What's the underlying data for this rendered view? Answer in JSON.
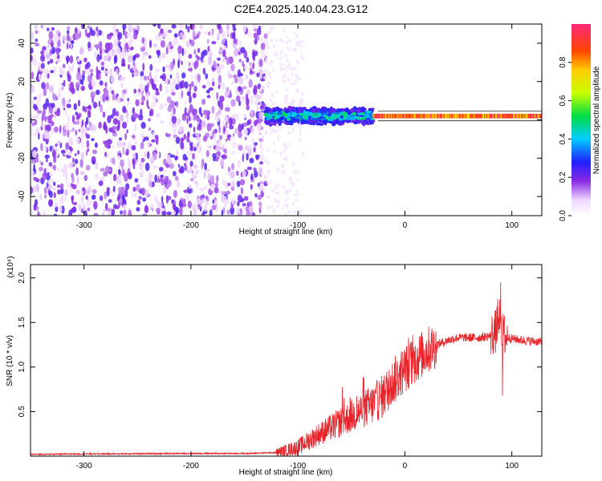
{
  "title": "C2E4.2025.140.04.23.G12",
  "chart_data": [
    {
      "type": "heatmap",
      "xlabel": "Height of straight line (km)",
      "ylabel": "Frequency (Hz)",
      "xlim": [
        -350,
        128
      ],
      "ylim": [
        -50,
        50
      ],
      "x_ticks": [
        -300,
        -200,
        -100,
        0,
        100
      ],
      "y_ticks": [
        40,
        20,
        0,
        -20,
        -40
      ],
      "colorbar": {
        "label": "Normalized spectral amplitude",
        "range": [
          0.0,
          1.0
        ],
        "ticks": [
          "0.0",
          "0.2",
          "0.4",
          "0.6",
          "0.8"
        ]
      },
      "features": [
        {
          "region": "noise",
          "x_range": [
            -350,
            -130
          ],
          "freq_range": [
            -50,
            50
          ],
          "amplitude": "low (0.05-0.2)"
        },
        {
          "region": "band",
          "x_range": [
            -130,
            -30
          ],
          "freq_center": 2,
          "freq_halfwidth": 4,
          "amplitude": "0.2-0.5"
        },
        {
          "region": "line",
          "x_range": [
            -30,
            128
          ],
          "freq_center": 2,
          "amplitude": "0.7-1.0"
        }
      ]
    },
    {
      "type": "line",
      "xlabel": "Height of straight line (km)",
      "ylabel": "SNR (10 * v/v)",
      "multiplier": "(x10⁴)",
      "xlim": [
        -350,
        128
      ],
      "ylim": [
        0,
        2.15
      ],
      "x_ticks": [
        -300,
        -200,
        -100,
        0,
        100
      ],
      "y_ticks": [
        "0.5",
        "1.0",
        "1.5",
        "2.0"
      ],
      "series": [
        {
          "color": "#e8232a",
          "x": [
            -350,
            -300,
            -200,
            -150,
            -120,
            -100,
            -80,
            -60,
            -40,
            -30,
            -20,
            -10,
            0,
            10,
            20,
            30,
            40,
            50,
            60,
            70,
            80,
            85,
            88,
            90,
            95,
            100,
            110,
            120,
            128
          ],
          "y": [
            0.02,
            0.025,
            0.03,
            0.03,
            0.04,
            0.1,
            0.25,
            0.38,
            0.52,
            0.58,
            0.68,
            0.85,
            0.98,
            1.08,
            1.18,
            1.25,
            1.3,
            1.33,
            1.33,
            1.33,
            1.35,
            1.4,
            1.6,
            1.4,
            1.33,
            1.32,
            1.3,
            1.29,
            1.28
          ]
        }
      ]
    }
  ]
}
